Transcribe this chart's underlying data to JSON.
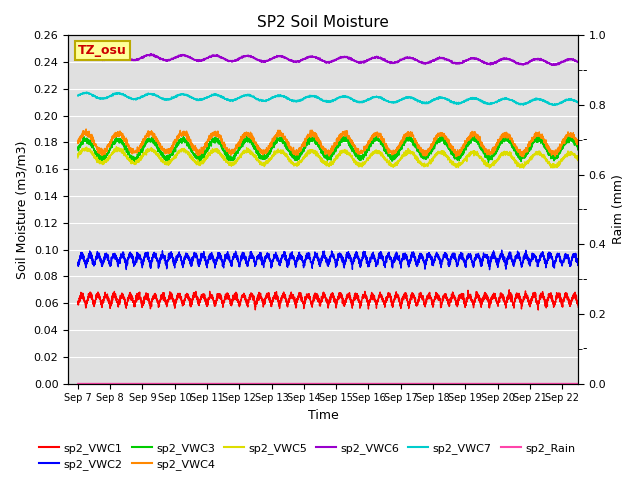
{
  "title": "SP2 Soil Moisture",
  "xlabel": "Time",
  "ylabel_left": "Soil Moisture (m3/m3)",
  "ylabel_right": "Raim (mm)",
  "ylim_left": [
    0.0,
    0.26
  ],
  "ylim_right": [
    0.0,
    1.0
  ],
  "num_points": 4000,
  "series": {
    "sp2_VWC1": {
      "color": "#ff0000",
      "base": 0.058,
      "amp": 0.008,
      "period": 0.5,
      "trend": 0.0,
      "phase": 0.0
    },
    "sp2_VWC2": {
      "color": "#0000ff",
      "base": 0.088,
      "amp": 0.008,
      "period": 0.5,
      "trend": 0.0,
      "phase": 0.0
    },
    "sp2_VWC3": {
      "color": "#00cc00",
      "base": 0.175,
      "amp": 0.007,
      "period": 1.0,
      "trend": 0.001,
      "phase": 0.0
    },
    "sp2_VWC4": {
      "color": "#ff8800",
      "base": 0.18,
      "amp": 0.007,
      "period": 1.0,
      "trend": -0.001,
      "phase": 0.0
    },
    "sp2_VWC5": {
      "color": "#dddd00",
      "base": 0.17,
      "amp": 0.005,
      "period": 1.0,
      "trend": -0.003,
      "phase": 0.0
    },
    "sp2_VWC6": {
      "color": "#9900cc",
      "base": 0.244,
      "amp": 0.002,
      "period": 1.0,
      "trend": -0.004,
      "phase": 0.0
    },
    "sp2_VWC7": {
      "color": "#00cccc",
      "base": 0.215,
      "amp": 0.002,
      "period": 1.0,
      "trend": -0.005,
      "phase": 0.0
    },
    "sp2_Rain": {
      "color": "#ff44aa",
      "base": 0.0,
      "amp": 0.0,
      "period": 1.0,
      "trend": 0.0,
      "phase": 0.0
    }
  },
  "x_tick_labels": [
    "Sep 7",
    "Sep 8",
    "Sep 9",
    "Sep 10",
    "Sep 11",
    "Sep 12",
    "Sep 13",
    "Sep 14",
    "Sep 15",
    "Sep 16",
    "Sep 17",
    "Sep 18",
    "Sep 19",
    "Sep 20",
    "Sep 21",
    "Sep 22"
  ],
  "x_tick_positions": [
    0,
    1,
    2,
    3,
    4,
    5,
    6,
    7,
    8,
    9,
    10,
    11,
    12,
    13,
    14,
    15
  ],
  "background_color": "#e0e0e0",
  "grid_color": "#ffffff",
  "annotation_text": "TZ_osu",
  "annotation_bg": "#ffff99",
  "annotation_border": "#bbaa00",
  "yticks_left": [
    0.0,
    0.02,
    0.04,
    0.06,
    0.08,
    0.1,
    0.12,
    0.14,
    0.16,
    0.18,
    0.2,
    0.22,
    0.24,
    0.26
  ],
  "yticks_right_major": [
    0.0,
    0.2,
    0.4,
    0.6,
    0.8,
    1.0
  ],
  "yticks_right_minor": [
    0.1,
    0.3,
    0.5,
    0.7,
    0.9
  ],
  "legend_order": [
    "sp2_VWC1",
    "sp2_VWC2",
    "sp2_VWC3",
    "sp2_VWC4",
    "sp2_VWC5",
    "sp2_VWC6",
    "sp2_VWC7",
    "sp2_Rain"
  ]
}
